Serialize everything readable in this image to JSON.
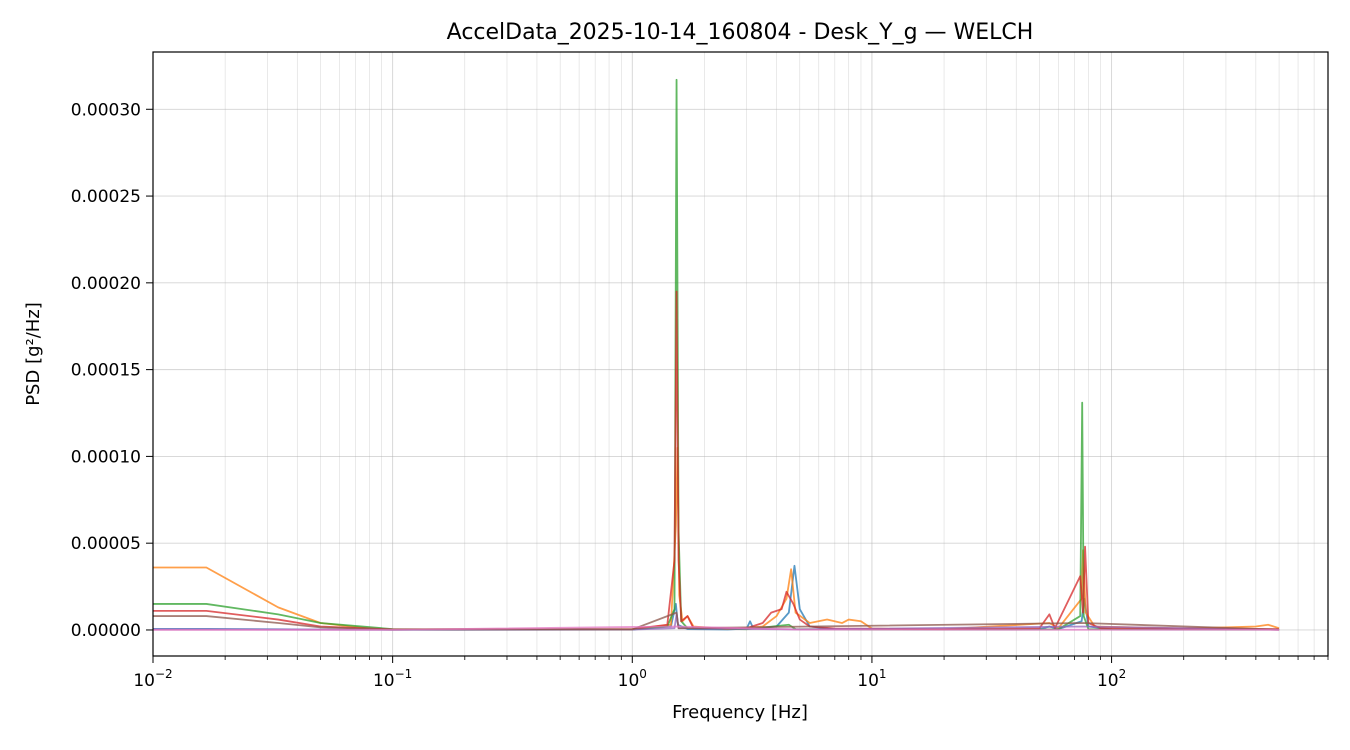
{
  "chart_data": {
    "type": "line",
    "title": "AccelData_2025-10-14_160804 - Desk_Y_g — WELCH",
    "xlabel": "Frequency [Hz]",
    "ylabel": "PSD [g²/Hz]",
    "xscale": "log",
    "xlim": [
      0.01,
      800
    ],
    "ylim": [
      -1.5e-05,
      0.000333
    ],
    "grid": true,
    "legend": "none",
    "x_ticks": [
      {
        "value": 0.01,
        "base": "10",
        "exp": "−2"
      },
      {
        "value": 0.1,
        "base": "10",
        "exp": "−1"
      },
      {
        "value": 1,
        "base": "10",
        "exp": "0"
      },
      {
        "value": 10,
        "base": "10",
        "exp": "1"
      },
      {
        "value": 100,
        "base": "10",
        "exp": "2"
      }
    ],
    "y_ticks": [
      {
        "value": 0.0,
        "label": "0.00000"
      },
      {
        "value": 5e-05,
        "label": "0.00005"
      },
      {
        "value": 0.0001,
        "label": "0.00010"
      },
      {
        "value": 0.00015,
        "label": "0.00015"
      },
      {
        "value": 0.0002,
        "label": "0.00020"
      },
      {
        "value": 0.00025,
        "label": "0.00025"
      },
      {
        "value": 0.0003,
        "label": "0.00030"
      }
    ],
    "series": [
      {
        "color": "#1f77b4",
        "points": [
          [
            0.01,
            6e-07
          ],
          [
            0.0167,
            6e-07
          ],
          [
            0.0333,
            4e-07
          ],
          [
            0.05,
            2e-07
          ],
          [
            0.1,
            1e-07
          ],
          [
            1.0,
            2e-07
          ],
          [
            1.45,
            2e-06
          ],
          [
            1.52,
            1.5e-05
          ],
          [
            1.55,
            3e-06
          ],
          [
            1.7,
            5e-07
          ],
          [
            2.5,
            3e-07
          ],
          [
            3.0,
            8e-07
          ],
          [
            3.1,
            5e-06
          ],
          [
            3.2,
            8e-07
          ],
          [
            4.0,
            2e-06
          ],
          [
            4.5,
            1e-05
          ],
          [
            4.75,
            3.7e-05
          ],
          [
            5.0,
            1.2e-05
          ],
          [
            5.5,
            2e-06
          ],
          [
            7,
            4e-07
          ],
          [
            15,
            2e-07
          ],
          [
            50,
            4e-07
          ],
          [
            55,
            2e-06
          ],
          [
            60,
            5e-07
          ],
          [
            75,
            5e-06
          ],
          [
            77,
            1.8e-05
          ],
          [
            80,
            2e-06
          ],
          [
            100,
            4e-07
          ],
          [
            500,
            2e-07
          ]
        ]
      },
      {
        "color": "#ff7f0e",
        "points": [
          [
            0.01,
            3.6e-05
          ],
          [
            0.0167,
            3.6e-05
          ],
          [
            0.0333,
            1.3e-05
          ],
          [
            0.05,
            4e-06
          ],
          [
            0.08,
            8e-07
          ],
          [
            0.1,
            4e-07
          ],
          [
            1.0,
            4e-07
          ],
          [
            1.45,
            3e-06
          ],
          [
            1.52,
            6e-05
          ],
          [
            1.545,
            0.000105
          ],
          [
            1.57,
            2e-05
          ],
          [
            1.62,
            5e-06
          ],
          [
            1.7,
            8e-06
          ],
          [
            1.8,
            2e-06
          ],
          [
            2.5,
            5e-07
          ],
          [
            3.5,
            2e-06
          ],
          [
            4.0,
            8e-06
          ],
          [
            4.4,
            1.8e-05
          ],
          [
            4.6,
            3.5e-05
          ],
          [
            4.8,
            1e-05
          ],
          [
            5.5,
            4e-06
          ],
          [
            6.5,
            6e-06
          ],
          [
            7.5,
            4e-06
          ],
          [
            8.0,
            6e-06
          ],
          [
            9.0,
            5e-06
          ],
          [
            10,
            8e-07
          ],
          [
            20,
            4e-07
          ],
          [
            55,
            4e-06
          ],
          [
            60,
            1e-06
          ],
          [
            75,
            1.8e-05
          ],
          [
            76,
            4.6e-05
          ],
          [
            78,
            1e-05
          ],
          [
            85,
            2e-06
          ],
          [
            200,
            8e-07
          ],
          [
            400,
            2e-06
          ],
          [
            450,
            3e-06
          ],
          [
            500,
            1e-06
          ]
        ]
      },
      {
        "color": "#2ca02c",
        "points": [
          [
            0.01,
            1.5e-05
          ],
          [
            0.0167,
            1.5e-05
          ],
          [
            0.0333,
            9e-06
          ],
          [
            0.05,
            4e-06
          ],
          [
            0.1,
            5e-07
          ],
          [
            1.0,
            3e-07
          ],
          [
            1.4,
            2e-06
          ],
          [
            1.5,
            1.2e-05
          ],
          [
            1.53,
            0.000317
          ],
          [
            1.56,
            5.7e-05
          ],
          [
            1.6,
            5e-06
          ],
          [
            1.7,
            1e-06
          ],
          [
            3.0,
            4e-07
          ],
          [
            4.5,
            3e-06
          ],
          [
            4.8,
            5e-07
          ],
          [
            10,
            2e-07
          ],
          [
            60,
            4e-07
          ],
          [
            74,
            8e-06
          ],
          [
            75.4,
            0.000131
          ],
          [
            76.5,
            8e-06
          ],
          [
            80,
            5e-07
          ],
          [
            500,
            2e-07
          ]
        ]
      },
      {
        "color": "#d62728",
        "points": [
          [
            0.01,
            1.1e-05
          ],
          [
            0.0167,
            1.1e-05
          ],
          [
            0.0333,
            6e-06
          ],
          [
            0.05,
            2e-06
          ],
          [
            0.1,
            3e-07
          ],
          [
            1.0,
            5e-07
          ],
          [
            1.4,
            3e-06
          ],
          [
            1.5,
            4e-05
          ],
          [
            1.53,
            0.000195
          ],
          [
            1.56,
            4e-05
          ],
          [
            1.6,
            5e-06
          ],
          [
            1.7,
            8e-06
          ],
          [
            1.8,
            1e-06
          ],
          [
            2.5,
            8e-07
          ],
          [
            3.0,
            1e-06
          ],
          [
            3.5,
            4e-06
          ],
          [
            3.8,
            1e-05
          ],
          [
            4.2,
            1.2e-05
          ],
          [
            4.4,
            2.2e-05
          ],
          [
            4.7,
            1.5e-05
          ],
          [
            5.0,
            6e-06
          ],
          [
            5.5,
            2e-06
          ],
          [
            7,
            8e-07
          ],
          [
            20,
            4e-07
          ],
          [
            50,
            1e-06
          ],
          [
            55,
            9e-06
          ],
          [
            58,
            1e-06
          ],
          [
            74,
            3.1e-05
          ],
          [
            76,
            1e-05
          ],
          [
            77.5,
            4.8e-05
          ],
          [
            80,
            4e-06
          ],
          [
            90,
            1e-06
          ],
          [
            500,
            5e-07
          ]
        ]
      },
      {
        "color": "#9467bd",
        "points": [
          [
            0.01,
            3e-07
          ],
          [
            0.0167,
            3e-07
          ],
          [
            0.05,
            2e-07
          ],
          [
            1.0,
            2e-07
          ],
          [
            1.5,
            1e-06
          ],
          [
            1.53,
            9e-06
          ],
          [
            1.56,
            1e-06
          ],
          [
            5.0,
            3e-07
          ],
          [
            76,
            2e-06
          ],
          [
            500,
            1e-07
          ]
        ]
      },
      {
        "color": "#8c564b",
        "points": [
          [
            0.01,
            8e-06
          ],
          [
            0.0167,
            8e-06
          ],
          [
            0.0333,
            4e-06
          ],
          [
            0.05,
            1.5e-06
          ],
          [
            0.1,
            3e-07
          ],
          [
            1.0,
            3e-07
          ],
          [
            1.53,
            1e-05
          ],
          [
            1.56,
            1e-06
          ],
          [
            76,
            4e-06
          ],
          [
            500,
            2e-07
          ]
        ]
      },
      {
        "color": "#e377c2",
        "points": [
          [
            0.01,
            1e-07
          ],
          [
            0.1,
            1e-07
          ],
          [
            1.53,
            2e-06
          ],
          [
            5,
            2e-07
          ],
          [
            500,
            1e-07
          ]
        ]
      }
    ]
  }
}
